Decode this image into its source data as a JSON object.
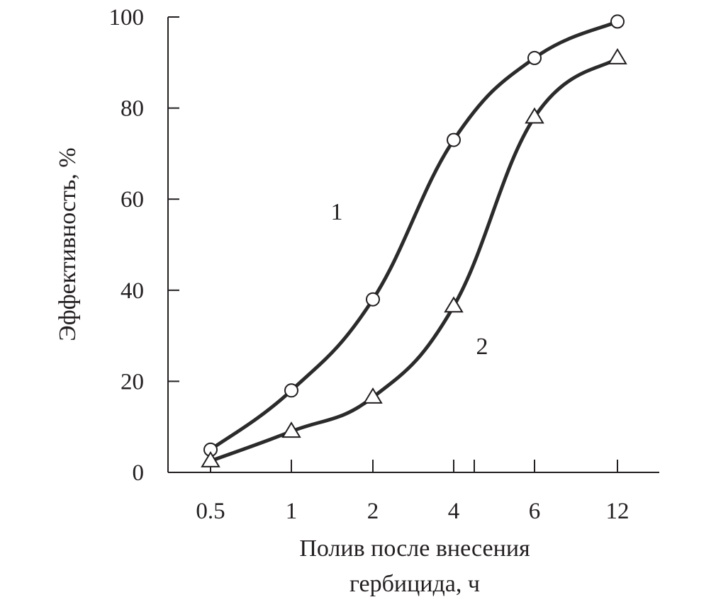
{
  "chart_data": {
    "type": "line",
    "categories": [
      "0.5",
      "1",
      "2",
      "4",
      "6",
      "12"
    ],
    "series": [
      {
        "name": "1",
        "marker": "circle",
        "values": [
          5,
          18,
          38,
          73,
          91,
          99
        ]
      },
      {
        "name": "2",
        "marker": "triangle",
        "values": [
          2.5,
          9,
          16.5,
          36.5,
          78,
          91
        ]
      }
    ],
    "xlabel": [
      "Полив после внесения",
      "гербицида, ч"
    ],
    "ylabel": "Эффективность, %",
    "ylim": [
      0,
      100
    ],
    "yticks": [
      0,
      20,
      40,
      60,
      80,
      100
    ],
    "grid": false,
    "legend": "inline labels",
    "colors": {
      "line": "#2b2b2b",
      "axis": "#231f20",
      "marker_fill": "#ffffff"
    }
  }
}
